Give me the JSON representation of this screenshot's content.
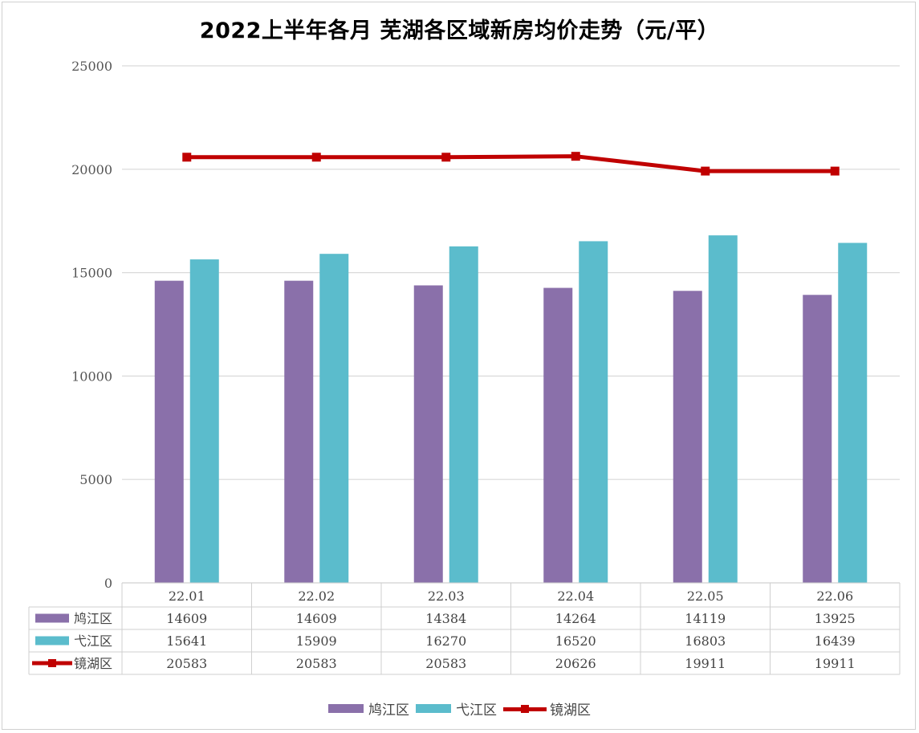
{
  "title": "2022上半年各月 芜湖各区域新房均价走势（元/平）",
  "colors": {
    "jiujiang": "#8a70aa",
    "yijiang": "#5bbccc",
    "jinghu": "#c00000"
  },
  "chart_data": {
    "type": "bar",
    "categories": [
      "22.01",
      "22.02",
      "22.03",
      "22.04",
      "22.05",
      "22.06"
    ],
    "series": [
      {
        "name": "鸠江区",
        "type": "bar",
        "values": [
          "14609",
          "14609",
          "14384",
          "14264",
          "14119",
          "13925"
        ]
      },
      {
        "name": "弋江区",
        "type": "bar",
        "values": [
          "15641",
          "15909",
          "16270",
          "16520",
          "16803",
          "16439"
        ]
      },
      {
        "name": "镜湖区",
        "type": "line",
        "values": [
          "20583",
          "20583",
          "20583",
          "20626",
          "19911",
          "19911"
        ]
      }
    ],
    "ylim": [
      0,
      25000
    ],
    "yticks": [
      "0",
      "5000",
      "10000",
      "15000",
      "20000",
      "25000"
    ],
    "grid": true,
    "data_table": true,
    "legend_position": "bottom"
  }
}
